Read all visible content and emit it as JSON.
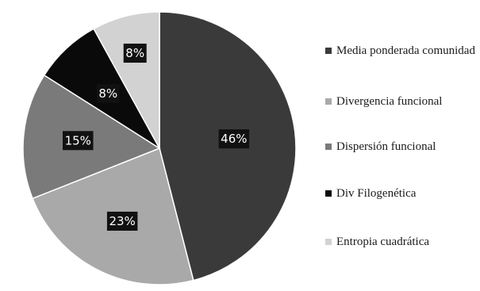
{
  "chart_data": {
    "type": "pie",
    "categories": [
      "Media ponderada comunidad",
      "Divergencia funcional",
      "Dispersión funcional",
      "Div Filogenética",
      "Entropia cuadrática"
    ],
    "values": [
      46,
      23,
      15,
      8,
      8
    ],
    "labels": [
      "46%",
      "23%",
      "15%",
      "8%",
      "8%"
    ],
    "colors": [
      "#3a3a3a",
      "#a9a9a9",
      "#7a7a7a",
      "#0a0a0a",
      "#d2d2d2"
    ],
    "legend_position": "right"
  }
}
